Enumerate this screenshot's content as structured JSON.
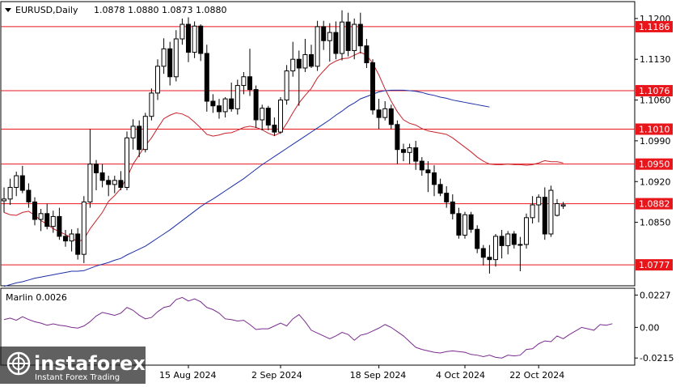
{
  "chart_header": {
    "symbol_tf": "EURUSD,Daily",
    "ohlc": "1.0878 1.0880 1.0873 1.0880"
  },
  "colors": {
    "background": "#ffffff",
    "grid_border": "#000000",
    "level_line": "#e8151b",
    "price_label_bg": "#e8151b",
    "ma_fast": "#c8222a",
    "ma_slow": "#1c2ea8",
    "oscillator": "#7a2b8f",
    "candle_up_fill": "#ffffff",
    "candle_down_fill": "#000000"
  },
  "chart_data": [
    {
      "type": "candlestick",
      "title": "EURUSD,Daily",
      "ylim": [
        1.0741,
        1.1229
      ],
      "x_tick_labels": [
        "15 Aug 2024",
        "2 Sep 2024",
        "18 Sep 2024",
        "4 Oct 2024",
        "22 Oct 2024"
      ],
      "y_tick_labels": [
        "1.1200",
        "1.1130",
        "1.1060",
        "1.0990",
        "1.0920",
        "1.0850"
      ],
      "y_tick_values": [
        1.12,
        1.113,
        1.106,
        1.099,
        1.092,
        1.085
      ],
      "horizontal_levels": [
        {
          "value": 1.1186,
          "label": "1.1186"
        },
        {
          "value": 1.1076,
          "label": "1.1076"
        },
        {
          "value": 1.101,
          "label": "1.1010"
        },
        {
          "value": 1.095,
          "label": "1.0950"
        },
        {
          "value": 1.0882,
          "label": "1.0882"
        },
        {
          "value": 1.0777,
          "label": "1.0777"
        }
      ],
      "candles": [
        [
          1.0887,
          1.091,
          1.0867,
          1.089
        ],
        [
          1.089,
          1.0925,
          1.088,
          1.091
        ],
        [
          1.091,
          1.0937,
          1.0895,
          1.093
        ],
        [
          1.093,
          1.0947,
          1.09,
          1.0905
        ],
        [
          1.0905,
          1.0917,
          1.0875,
          1.0885
        ],
        [
          1.0885,
          1.0893,
          1.0845,
          1.0855
        ],
        [
          1.0855,
          1.0873,
          1.0835,
          1.0865
        ],
        [
          1.0865,
          1.0882,
          1.0838,
          1.0843
        ],
        [
          1.0843,
          1.087,
          1.0832,
          1.086
        ],
        [
          1.086,
          1.0875,
          1.082,
          1.0826
        ],
        [
          1.0826,
          1.0837,
          1.0808,
          1.0818
        ],
        [
          1.0818,
          1.0838,
          1.08,
          1.083
        ],
        [
          1.083,
          1.084,
          1.0786,
          1.0795
        ],
        [
          1.0795,
          1.0895,
          1.078,
          1.0885
        ],
        [
          1.0885,
          1.101,
          1.0875,
          1.095
        ],
        [
          1.095,
          1.0957,
          1.0905,
          1.0935
        ],
        [
          1.0935,
          1.095,
          1.091,
          1.0922
        ],
        [
          1.0922,
          1.093,
          1.0895,
          1.0915
        ],
        [
          1.0915,
          1.093,
          1.09,
          1.0922
        ],
        [
          1.0922,
          1.0938,
          1.0905,
          1.091
        ],
        [
          1.091,
          1.1006,
          1.0905,
          1.0995
        ],
        [
          1.0995,
          1.1027,
          1.0975,
          1.1015
        ],
        [
          1.1015,
          1.1025,
          1.0962,
          1.0975
        ],
        [
          1.0975,
          1.1038,
          1.097,
          1.1032
        ],
        [
          1.1032,
          1.108,
          1.1025,
          1.1072
        ],
        [
          1.1072,
          1.113,
          1.106,
          1.1118
        ],
        [
          1.1118,
          1.1166,
          1.1105,
          1.1148
        ],
        [
          1.1148,
          1.116,
          1.1085,
          1.11
        ],
        [
          1.11,
          1.118,
          1.1092,
          1.1165
        ],
        [
          1.1165,
          1.12,
          1.1155,
          1.119
        ],
        [
          1.119,
          1.1202,
          1.1125,
          1.1142
        ],
        [
          1.1142,
          1.1195,
          1.1132,
          1.1187
        ],
        [
          1.1187,
          1.119,
          1.1127,
          1.114
        ],
        [
          1.114,
          1.1155,
          1.104,
          1.1058
        ],
        [
          1.1058,
          1.107,
          1.1038,
          1.105
        ],
        [
          1.105,
          1.1062,
          1.1028,
          1.104
        ],
        [
          1.104,
          1.1065,
          1.103,
          1.1062
        ],
        [
          1.1062,
          1.109,
          1.104,
          1.1045
        ],
        [
          1.1045,
          1.1095,
          1.1035,
          1.1085
        ],
        [
          1.1085,
          1.1108,
          1.107,
          1.11
        ],
        [
          1.11,
          1.1148,
          1.1067,
          1.1078
        ],
        [
          1.1078,
          1.1085,
          1.1012,
          1.1026
        ],
        [
          1.1026,
          1.1052,
          1.1008,
          1.1046
        ],
        [
          1.1046,
          1.105,
          1.1008,
          1.1017
        ],
        [
          1.1017,
          1.103,
          1.0998,
          1.1005
        ],
        [
          1.1005,
          1.1065,
          1.1002,
          1.106
        ],
        [
          1.106,
          1.112,
          1.1052,
          1.111
        ],
        [
          1.111,
          1.116,
          1.11,
          1.113
        ],
        [
          1.113,
          1.1145,
          1.105,
          1.1115
        ],
        [
          1.1115,
          1.1165,
          1.1108,
          1.1138
        ],
        [
          1.1138,
          1.1155,
          1.1115,
          1.1118
        ],
        [
          1.1118,
          1.1196,
          1.111,
          1.1186
        ],
        [
          1.1186,
          1.1196,
          1.1146,
          1.1162
        ],
        [
          1.1162,
          1.1192,
          1.1126,
          1.1176
        ],
        [
          1.1176,
          1.1195,
          1.113,
          1.114
        ],
        [
          1.114,
          1.1214,
          1.1128,
          1.1194
        ],
        [
          1.1194,
          1.121,
          1.1135,
          1.1145
        ],
        [
          1.1145,
          1.12,
          1.113,
          1.119
        ],
        [
          1.119,
          1.121,
          1.114,
          1.1153
        ],
        [
          1.1153,
          1.1165,
          1.1115,
          1.1124
        ],
        [
          1.1124,
          1.113,
          1.1035,
          1.1043
        ],
        [
          1.1043,
          1.1062,
          1.101,
          1.103
        ],
        [
          1.103,
          1.1058,
          1.1025,
          1.1045
        ],
        [
          1.1045,
          1.1052,
          1.101,
          1.1018
        ],
        [
          1.1018,
          1.1025,
          1.095,
          1.0975
        ],
        [
          1.0975,
          1.0985,
          1.0955,
          1.097
        ],
        [
          1.097,
          1.0985,
          1.095,
          1.0978
        ],
        [
          1.0978,
          1.099,
          1.094,
          1.0955
        ],
        [
          1.0955,
          1.0962,
          1.093,
          1.094
        ],
        [
          1.094,
          1.0955,
          1.0902,
          1.0935
        ],
        [
          1.0935,
          1.0948,
          1.0895,
          1.0915
        ],
        [
          1.0915,
          1.0925,
          1.0895,
          1.09
        ],
        [
          1.09,
          1.0912,
          1.0875,
          1.0885
        ],
        [
          1.0885,
          1.0898,
          1.0855,
          1.0865
        ],
        [
          1.0865,
          1.0875,
          1.0822,
          1.0828
        ],
        [
          1.0828,
          1.0868,
          1.0822,
          1.0863
        ],
        [
          1.0863,
          1.0868,
          1.0832,
          1.0838
        ],
        [
          1.0838,
          1.0845,
          1.0797,
          1.0805
        ],
        [
          1.0805,
          1.0811,
          1.0776,
          1.079
        ],
        [
          1.079,
          1.0811,
          1.0762,
          1.0786
        ],
        [
          1.0786,
          1.083,
          1.0774,
          1.0826
        ],
        [
          1.0826,
          1.0837,
          1.0788,
          1.081
        ],
        [
          1.081,
          1.0835,
          1.0795,
          1.083
        ],
        [
          1.083,
          1.0835,
          1.0805,
          1.0812
        ],
        [
          1.0812,
          1.0825,
          1.0766,
          1.0812
        ],
        [
          1.0812,
          1.0865,
          1.0805,
          1.0858
        ],
        [
          1.0858,
          1.0895,
          1.0848,
          1.088
        ],
        [
          1.088,
          1.0898,
          1.085,
          1.0893
        ],
        [
          1.0893,
          1.091,
          1.082,
          1.083
        ],
        [
          1.083,
          1.0913,
          1.0825,
          1.0905
        ],
        [
          1.0862,
          1.089,
          1.086,
          1.0882
        ],
        [
          1.0878,
          1.0885,
          1.0873,
          1.088
        ]
      ],
      "ma_fast": [
        1.0867,
        1.0863,
        1.0862,
        1.0867,
        1.0869,
        1.0862,
        1.0853,
        1.0847,
        1.0839,
        1.0834,
        1.0829,
        1.0823,
        1.0817,
        1.0821,
        1.0839,
        1.0853,
        1.0867,
        1.0886,
        1.0896,
        1.0908,
        1.0927,
        1.095,
        1.0966,
        1.0982,
        1.0995,
        1.1012,
        1.1028,
        1.1034,
        1.1038,
        1.1036,
        1.1031,
        1.1022,
        1.1012,
        1.1001,
        1.0998,
        1.1,
        1.1003,
        1.1004,
        1.1008,
        1.1013,
        1.1015,
        1.1013,
        1.1009,
        1.1003,
        1.0999,
        1.1004,
        1.102,
        1.1038,
        1.1055,
        1.1068,
        1.108,
        1.1098,
        1.111,
        1.1121,
        1.1127,
        1.1131,
        1.1132,
        1.1137,
        1.1142,
        1.1137,
        1.1123,
        1.1103,
        1.1079,
        1.1058,
        1.104,
        1.1026,
        1.102,
        1.1017,
        1.1011,
        1.1007,
        1.1005,
        1.1003,
        1.1001,
        1.0995,
        1.0987,
        1.0979,
        1.0971,
        1.0962,
        1.0955,
        1.095,
        1.0949,
        1.0949,
        1.095,
        1.0949,
        1.0949,
        1.0948,
        1.0949,
        1.0952,
        1.0956,
        1.0954,
        1.0954,
        1.0952
      ],
      "ma_slow": [
        1.074,
        1.0743,
        1.0746,
        1.0748,
        1.0751,
        1.0754,
        1.0756,
        1.0758,
        1.076,
        1.0762,
        1.0764,
        1.0766,
        1.0766,
        1.0767,
        1.0771,
        1.0775,
        1.0778,
        1.0781,
        1.0785,
        1.0788,
        1.0794,
        1.0799,
        1.0804,
        1.0809,
        1.0816,
        1.0823,
        1.083,
        1.0837,
        1.0845,
        1.0853,
        1.0861,
        1.0869,
        1.0877,
        1.0884,
        1.089,
        1.0897,
        1.0904,
        1.0911,
        1.0918,
        1.0925,
        1.0933,
        1.0941,
        1.0949,
        1.0956,
        1.0963,
        1.097,
        1.0977,
        1.0984,
        1.0991,
        1.0998,
        1.1005,
        1.1012,
        1.1019,
        1.1026,
        1.1034,
        1.1041,
        1.1049,
        1.1055,
        1.1062,
        1.1066,
        1.107,
        1.1074,
        1.1076,
        1.1077,
        1.1077,
        1.1077,
        1.1076,
        1.1075,
        1.1073,
        1.107,
        1.1068,
        1.1065,
        1.1063,
        1.106,
        1.1058,
        1.1056,
        1.1054,
        1.1052,
        1.105,
        1.1048
      ],
      "ma_slow_start_index": 0,
      "ma_slow_len_note_index_end": 80
    },
    {
      "type": "line",
      "title": "Marlin 0.0026",
      "indicator_name": "Marlin",
      "indicator_value": "0.0026",
      "ylim": [
        -0.0265,
        0.0275
      ],
      "y_tick_labels": [
        "0.0227",
        "0.00",
        "-0.0215"
      ],
      "y_tick_values": [
        0.0227,
        0.0,
        -0.0215
      ],
      "values": [
        0.0055,
        0.0065,
        0.005,
        0.0075,
        0.0055,
        0.004,
        0.003,
        0.0015,
        0.0025,
        0.0015,
        0.001,
        0.0,
        -0.0005,
        0.001,
        0.004,
        0.008,
        0.0105,
        0.0095,
        0.0085,
        0.01,
        0.014,
        0.012,
        0.0085,
        0.006,
        0.007,
        0.011,
        0.014,
        0.015,
        0.0195,
        0.021,
        0.0185,
        0.02,
        0.018,
        0.014,
        0.0125,
        0.01,
        0.006,
        0.0055,
        0.0045,
        0.005,
        0.002,
        -0.0015,
        -0.001,
        -0.001,
        0.001,
        0.003,
        0.001,
        0.006,
        0.009,
        0.004,
        -0.002,
        -0.004,
        -0.006,
        -0.008,
        -0.006,
        -0.0035,
        -0.005,
        -0.009,
        -0.0055,
        -0.0045,
        -0.0025,
        -0.0005,
        0.002,
        0.0,
        -0.003,
        -0.006,
        -0.01,
        -0.014,
        -0.0155,
        -0.0165,
        -0.0175,
        -0.018,
        -0.017,
        -0.0165,
        -0.017,
        -0.0175,
        -0.019,
        -0.0195,
        -0.0205,
        -0.0195,
        -0.021,
        -0.0215,
        -0.0195,
        -0.02,
        -0.0195,
        -0.0155,
        -0.015,
        -0.0115,
        -0.0095,
        -0.01,
        -0.006,
        -0.008,
        -0.005,
        -0.0025,
        0.0,
        -0.001,
        -0.002,
        0.002,
        0.0015,
        0.0026
      ]
    }
  ],
  "watermark": {
    "brand": "instaforex",
    "tagline": "Instant Forex Trading"
  }
}
